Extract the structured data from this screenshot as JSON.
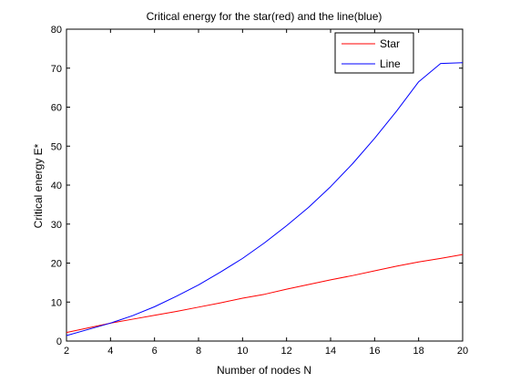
{
  "chart_data": {
    "type": "line",
    "title": "Critical energy for the star(red) and the line(blue)",
    "xlabel": "Number of nodes N",
    "ylabel": "Critical energy E*",
    "xlim": [
      2,
      20
    ],
    "ylim": [
      0,
      80
    ],
    "xticks": [
      2,
      4,
      6,
      8,
      10,
      12,
      14,
      16,
      18,
      20
    ],
    "yticks": [
      0,
      10,
      20,
      30,
      40,
      50,
      60,
      70,
      80
    ],
    "grid": false,
    "legend_position": "top-right",
    "x": [
      2,
      3,
      4,
      5,
      6,
      7,
      8,
      9,
      10,
      11,
      12,
      13,
      14,
      15,
      16,
      17,
      18,
      19,
      20
    ],
    "series": [
      {
        "name": "Star",
        "color": "#ff0000",
        "values": [
          2.2,
          3.4,
          4.6,
          5.6,
          6.6,
          7.6,
          8.7,
          9.8,
          11.0,
          12.0,
          13.3,
          14.5,
          15.7,
          16.8,
          18.0,
          19.2,
          20.3,
          21.2,
          22.2
        ]
      },
      {
        "name": "Line",
        "color": "#0000ff",
        "values": [
          1.4,
          3.0,
          4.6,
          6.5,
          8.8,
          11.5,
          14.4,
          17.7,
          21.2,
          25.2,
          29.6,
          34.3,
          39.6,
          45.5,
          52.0,
          59.0,
          66.5,
          71.2,
          71.4
        ]
      }
    ]
  }
}
